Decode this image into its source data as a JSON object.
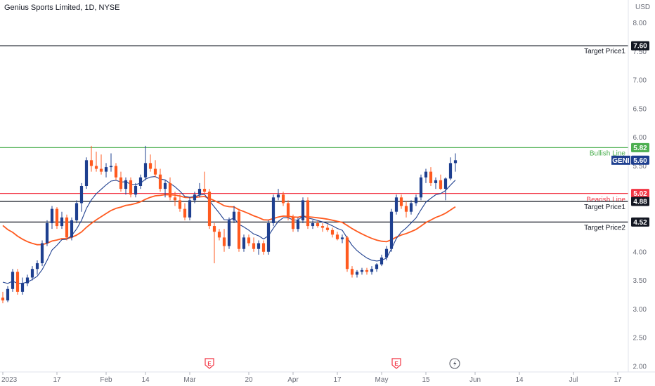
{
  "header": {
    "title": "Genius Sports Limited, 1D, NYSE",
    "currency": "USD"
  },
  "chart_data": {
    "type": "candlestick",
    "symbol": "GENI",
    "ylim": [
      1.9,
      8.4
    ],
    "yticks": [
      {
        "v": 8.0,
        "label": "8.00"
      },
      {
        "v": 7.5,
        "label": "7.50"
      },
      {
        "v": 7.0,
        "label": "7.00"
      },
      {
        "v": 6.5,
        "label": "6.50"
      },
      {
        "v": 6.0,
        "label": "6.00"
      },
      {
        "v": 5.5,
        "label": "5.50"
      },
      {
        "v": 4.5,
        "label": "4.50"
      },
      {
        "v": 4.0,
        "label": "4.00"
      },
      {
        "v": 3.5,
        "label": "3.50"
      },
      {
        "v": 3.0,
        "label": "3.00"
      },
      {
        "v": 2.5,
        "label": "2.50"
      },
      {
        "v": 2.0,
        "label": "2.00"
      }
    ],
    "xticks": [
      {
        "i": 0,
        "label": "2023"
      },
      {
        "i": 11,
        "label": "17"
      },
      {
        "i": 21,
        "label": "Feb"
      },
      {
        "i": 29,
        "label": "14"
      },
      {
        "i": 38,
        "label": "Mar"
      },
      {
        "i": 50,
        "label": "20"
      },
      {
        "i": 59,
        "label": "Apr"
      },
      {
        "i": 68,
        "label": "17"
      },
      {
        "i": 77,
        "label": "May"
      },
      {
        "i": 86,
        "label": "15"
      },
      {
        "i": 96,
        "label": "Jun"
      },
      {
        "i": 105,
        "label": "14"
      },
      {
        "i": 116,
        "label": "Jul"
      },
      {
        "i": 125,
        "label": "17"
      }
    ],
    "levels": [
      {
        "value": 7.6,
        "label": "Target Price1",
        "badge": "7.60",
        "color": "#131722",
        "badge_color": "#131722"
      },
      {
        "value": 5.82,
        "label": "Bullish Line",
        "badge": "5.82",
        "color": "#4caf50",
        "badge_color": "#4caf50"
      },
      {
        "value": 5.02,
        "label": "Bearish Line",
        "badge": "5.02",
        "color": "#f23645",
        "badge_color": "#f23645"
      },
      {
        "value": 4.88,
        "label": "Target Price1",
        "badge": "4.88",
        "color": "#131722",
        "badge_color": "#131722"
      },
      {
        "value": 4.52,
        "label": "Target Price2",
        "badge": "4.52",
        "color": "#131722",
        "badge_color": "#131722"
      }
    ],
    "last_price": {
      "symbol": "GENI",
      "value": 5.6,
      "badge": "5.60",
      "color": "#1e3f8f"
    },
    "colors": {
      "up": "#1e3f8f",
      "down": "#ff5a1f",
      "ma_fast": "#1e3f8f",
      "ma_slow": "#ff5a1f"
    },
    "candles": [
      [
        3.2,
        3.3,
        3.1,
        3.15
      ],
      [
        3.15,
        3.4,
        3.12,
        3.35
      ],
      [
        3.35,
        3.7,
        3.3,
        3.65
      ],
      [
        3.65,
        3.7,
        3.25,
        3.3
      ],
      [
        3.3,
        3.55,
        3.25,
        3.45
      ],
      [
        3.45,
        3.6,
        3.4,
        3.55
      ],
      [
        3.55,
        3.75,
        3.5,
        3.7
      ],
      [
        3.7,
        3.85,
        3.6,
        3.8
      ],
      [
        3.8,
        4.2,
        3.75,
        4.15
      ],
      [
        4.15,
        4.55,
        4.1,
        4.5
      ],
      [
        4.5,
        4.8,
        4.4,
        4.75
      ],
      [
        4.75,
        4.78,
        4.4,
        4.45
      ],
      [
        4.45,
        4.7,
        4.4,
        4.6
      ],
      [
        4.6,
        4.65,
        4.2,
        4.25
      ],
      [
        4.25,
        4.6,
        4.2,
        4.55
      ],
      [
        4.55,
        4.9,
        4.5,
        4.85
      ],
      [
        4.85,
        5.2,
        4.7,
        5.15
      ],
      [
        5.15,
        5.65,
        5.1,
        5.6
      ],
      [
        5.6,
        5.85,
        5.4,
        5.5
      ],
      [
        5.5,
        5.75,
        5.4,
        5.45
      ],
      [
        5.45,
        5.7,
        5.35,
        5.4
      ],
      [
        5.4,
        5.55,
        5.3,
        5.48
      ],
      [
        5.48,
        5.72,
        5.4,
        5.5
      ],
      [
        5.5,
        5.55,
        5.25,
        5.3
      ],
      [
        5.3,
        5.4,
        5.05,
        5.1
      ],
      [
        5.1,
        5.3,
        5.0,
        5.25
      ],
      [
        5.25,
        5.3,
        4.95,
        5.0
      ],
      [
        5.0,
        5.2,
        4.95,
        5.15
      ],
      [
        5.15,
        5.35,
        5.1,
        5.3
      ],
      [
        5.3,
        5.85,
        5.25,
        5.55
      ],
      [
        5.55,
        5.7,
        5.4,
        5.45
      ],
      [
        5.45,
        5.6,
        5.3,
        5.35
      ],
      [
        5.35,
        5.45,
        5.05,
        5.1
      ],
      [
        5.1,
        5.25,
        4.95,
        5.2
      ],
      [
        5.2,
        5.3,
        4.9,
        4.95
      ],
      [
        4.95,
        5.05,
        4.8,
        4.9
      ],
      [
        4.9,
        5.0,
        4.7,
        4.75
      ],
      [
        4.75,
        4.85,
        4.55,
        4.6
      ],
      [
        4.6,
        4.95,
        4.55,
        4.9
      ],
      [
        4.9,
        5.05,
        4.85,
        5.0
      ],
      [
        5.0,
        5.2,
        4.95,
        5.1
      ],
      [
        5.1,
        5.4,
        5.0,
        5.05
      ],
      [
        5.05,
        5.1,
        4.4,
        4.45
      ],
      [
        4.45,
        4.5,
        3.8,
        4.35
      ],
      [
        4.35,
        4.4,
        4.2,
        4.25
      ],
      [
        4.25,
        4.4,
        4.0,
        4.1
      ],
      [
        4.1,
        4.6,
        4.05,
        4.55
      ],
      [
        4.55,
        4.8,
        4.5,
        4.7
      ],
      [
        4.7,
        4.75,
        4.0,
        4.05
      ],
      [
        4.05,
        4.3,
        4.0,
        4.25
      ],
      [
        4.25,
        4.3,
        4.1,
        4.15
      ],
      [
        4.15,
        4.25,
        4.0,
        4.05
      ],
      [
        4.05,
        4.2,
        3.95,
        4.15
      ],
      [
        4.15,
        4.2,
        3.95,
        4.0
      ],
      [
        4.0,
        4.55,
        3.95,
        4.5
      ],
      [
        4.5,
        5.0,
        4.45,
        4.95
      ],
      [
        4.95,
        5.1,
        4.9,
        5.0
      ],
      [
        5.0,
        5.05,
        4.8,
        4.85
      ],
      [
        4.85,
        4.9,
        4.55,
        4.6
      ],
      [
        4.6,
        4.65,
        4.35,
        4.4
      ],
      [
        4.4,
        4.6,
        4.35,
        4.55
      ],
      [
        4.55,
        4.95,
        4.5,
        4.9
      ],
      [
        4.9,
        4.95,
        4.4,
        4.45
      ],
      [
        4.45,
        4.55,
        4.4,
        4.5
      ],
      [
        4.5,
        4.55,
        4.42,
        4.45
      ],
      [
        4.45,
        4.5,
        4.35,
        4.42
      ],
      [
        4.42,
        4.48,
        4.35,
        4.38
      ],
      [
        4.38,
        4.42,
        4.25,
        4.3
      ],
      [
        4.3,
        4.35,
        4.2,
        4.22
      ],
      [
        4.22,
        4.3,
        4.15,
        4.25
      ],
      [
        4.25,
        4.28,
        3.65,
        3.7
      ],
      [
        3.7,
        3.75,
        3.55,
        3.6
      ],
      [
        3.6,
        3.68,
        3.55,
        3.65
      ],
      [
        3.65,
        3.72,
        3.6,
        3.68
      ],
      [
        3.68,
        3.72,
        3.6,
        3.65
      ],
      [
        3.65,
        3.75,
        3.6,
        3.7
      ],
      [
        3.7,
        3.8,
        3.65,
        3.78
      ],
      [
        3.78,
        3.95,
        3.75,
        3.9
      ],
      [
        3.9,
        4.1,
        3.85,
        4.05
      ],
      [
        4.05,
        4.75,
        4.0,
        4.7
      ],
      [
        4.7,
        5.0,
        4.65,
        4.95
      ],
      [
        4.95,
        5.0,
        4.75,
        4.8
      ],
      [
        4.8,
        4.88,
        4.6,
        4.7
      ],
      [
        4.7,
        4.9,
        4.65,
        4.85
      ],
      [
        4.85,
        5.0,
        4.8,
        4.95
      ],
      [
        4.95,
        5.35,
        4.9,
        5.3
      ],
      [
        5.3,
        5.45,
        5.2,
        5.4
      ],
      [
        5.4,
        5.48,
        5.15,
        5.2
      ],
      [
        5.2,
        5.3,
        5.1,
        5.25
      ],
      [
        5.25,
        5.35,
        5.08,
        5.1
      ],
      [
        5.1,
        5.3,
        4.9,
        5.28
      ],
      [
        5.28,
        5.65,
        5.25,
        5.55
      ],
      [
        5.55,
        5.72,
        5.4,
        5.6
      ]
    ],
    "annotations": {
      "earnings": [
        {
          "i": 42,
          "label": "E"
        },
        {
          "i": 80,
          "label": "E"
        }
      ],
      "dividend_icon_i": 92
    }
  }
}
